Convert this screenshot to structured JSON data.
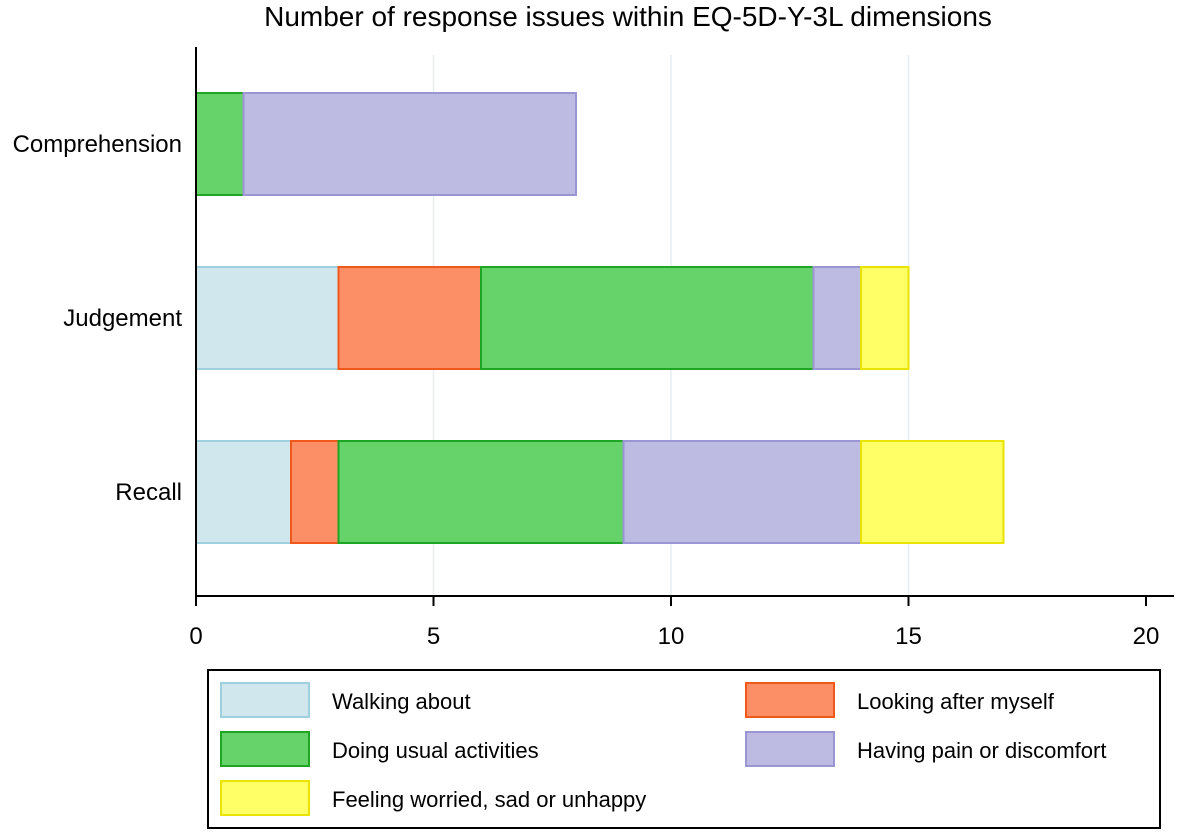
{
  "chart_data": {
    "type": "bar",
    "orientation": "horizontal",
    "stacked": true,
    "title": "Number of response issues within EQ-5D-Y-3L dimensions",
    "xlabel": "",
    "ylabel": "",
    "xlim": [
      0,
      20
    ],
    "xticks": [
      0,
      5,
      10,
      15,
      20
    ],
    "grid": true,
    "legend_position": "bottom",
    "categories": [
      "Comprehension",
      "Judgement",
      "Recall"
    ],
    "series": [
      {
        "name": "Walking about",
        "values": [
          0,
          3,
          2
        ],
        "color": "#d1e7ee",
        "stroke": "#9fd0e0"
      },
      {
        "name": "Looking after myself",
        "values": [
          0,
          3,
          1
        ],
        "color": "#fd8f66",
        "stroke": "#f0581c"
      },
      {
        "name": "Doing usual activities",
        "values": [
          1,
          7,
          6
        ],
        "color": "#66d26a",
        "stroke": "#1ea523"
      },
      {
        "name": "Having pain or discomfort",
        "values": [
          7,
          1,
          5
        ],
        "color": "#bebbe3",
        "stroke": "#9a95d3"
      },
      {
        "name": "Feeling worried, sad or unhappy",
        "values": [
          0,
          1,
          3
        ],
        "color": "#ffff66",
        "stroke": "#e9e300"
      }
    ]
  }
}
